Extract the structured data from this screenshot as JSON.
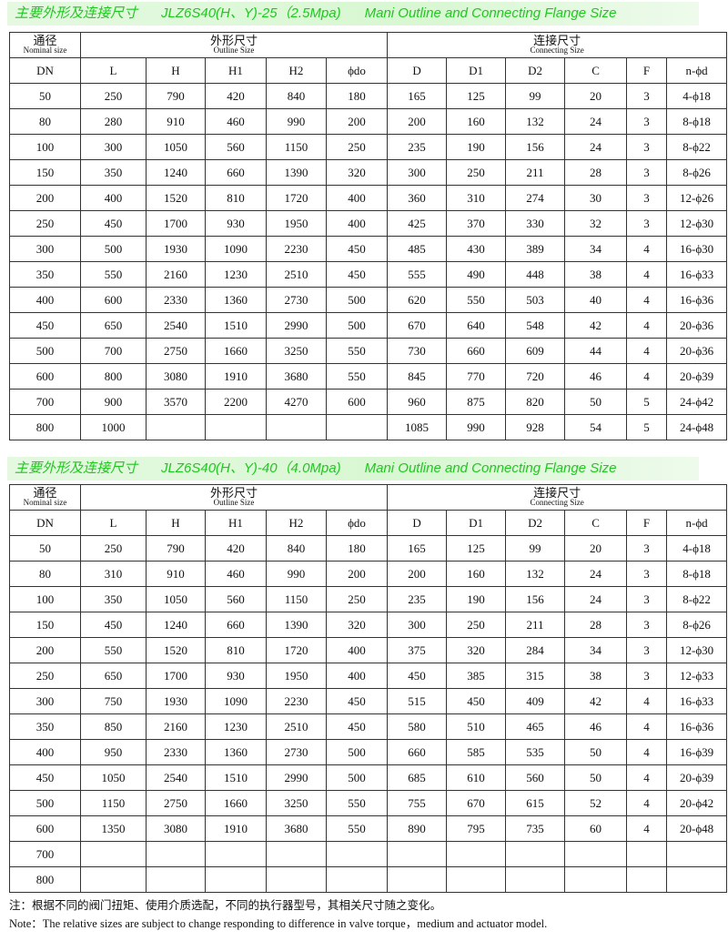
{
  "tables": [
    {
      "title": {
        "cn": "主要外形及连接尺寸",
        "model": "JLZ6S40(H、Y)-25（2.5Mpa)",
        "en": "Mani Outline and Connecting Flange Size"
      },
      "groups": {
        "nominal_cn": "通径",
        "nominal_en": "Nominal size",
        "outline_cn": "外形尺寸",
        "outline_en": "Outline Size",
        "connect_cn": "连接尺寸",
        "connect_en": "Connecting Size"
      },
      "columns": [
        "DN",
        "L",
        "H",
        "H1",
        "H2",
        "ϕdo",
        "D",
        "D1",
        "D2",
        "C",
        "F",
        "n-ϕd"
      ],
      "rows": [
        [
          "50",
          "250",
          "790",
          "420",
          "840",
          "180",
          "165",
          "125",
          "99",
          "20",
          "3",
          "4-ϕ18"
        ],
        [
          "80",
          "280",
          "910",
          "460",
          "990",
          "200",
          "200",
          "160",
          "132",
          "24",
          "3",
          "8-ϕ18"
        ],
        [
          "100",
          "300",
          "1050",
          "560",
          "1150",
          "250",
          "235",
          "190",
          "156",
          "24",
          "3",
          "8-ϕ22"
        ],
        [
          "150",
          "350",
          "1240",
          "660",
          "1390",
          "320",
          "300",
          "250",
          "211",
          "28",
          "3",
          "8-ϕ26"
        ],
        [
          "200",
          "400",
          "1520",
          "810",
          "1720",
          "400",
          "360",
          "310",
          "274",
          "30",
          "3",
          "12-ϕ26"
        ],
        [
          "250",
          "450",
          "1700",
          "930",
          "1950",
          "400",
          "425",
          "370",
          "330",
          "32",
          "3",
          "12-ϕ30"
        ],
        [
          "300",
          "500",
          "1930",
          "1090",
          "2230",
          "450",
          "485",
          "430",
          "389",
          "34",
          "4",
          "16-ϕ30"
        ],
        [
          "350",
          "550",
          "2160",
          "1230",
          "2510",
          "450",
          "555",
          "490",
          "448",
          "38",
          "4",
          "16-ϕ33"
        ],
        [
          "400",
          "600",
          "2330",
          "1360",
          "2730",
          "500",
          "620",
          "550",
          "503",
          "40",
          "4",
          "16-ϕ36"
        ],
        [
          "450",
          "650",
          "2540",
          "1510",
          "2990",
          "500",
          "670",
          "640",
          "548",
          "42",
          "4",
          "20-ϕ36"
        ],
        [
          "500",
          "700",
          "2750",
          "1660",
          "3250",
          "550",
          "730",
          "660",
          "609",
          "44",
          "4",
          "20-ϕ36"
        ],
        [
          "600",
          "800",
          "3080",
          "1910",
          "3680",
          "550",
          "845",
          "770",
          "720",
          "46",
          "4",
          "20-ϕ39"
        ],
        [
          "700",
          "900",
          "3570",
          "2200",
          "4270",
          "600",
          "960",
          "875",
          "820",
          "50",
          "5",
          "24-ϕ42"
        ],
        [
          "800",
          "1000",
          "",
          "",
          "",
          "",
          "1085",
          "990",
          "928",
          "54",
          "5",
          "24-ϕ48"
        ]
      ]
    },
    {
      "title": {
        "cn": "主要外形及连接尺寸",
        "model": "JLZ6S40(H、Y)-40（4.0Mpa)",
        "en": "Mani Outline and Connecting Flange Size"
      },
      "groups": {
        "nominal_cn": "通径",
        "nominal_en": "Nominal size",
        "outline_cn": "外形尺寸",
        "outline_en": "Outline Size",
        "connect_cn": "连接尺寸",
        "connect_en": "Connecting Size"
      },
      "columns": [
        "DN",
        "L",
        "H",
        "H1",
        "H2",
        "ϕdo",
        "D",
        "D1",
        "D2",
        "C",
        "F",
        "n-ϕd"
      ],
      "rows": [
        [
          "50",
          "250",
          "790",
          "420",
          "840",
          "180",
          "165",
          "125",
          "99",
          "20",
          "3",
          "4-ϕ18"
        ],
        [
          "80",
          "310",
          "910",
          "460",
          "990",
          "200",
          "200",
          "160",
          "132",
          "24",
          "3",
          "8-ϕ18"
        ],
        [
          "100",
          "350",
          "1050",
          "560",
          "1150",
          "250",
          "235",
          "190",
          "156",
          "24",
          "3",
          "8-ϕ22"
        ],
        [
          "150",
          "450",
          "1240",
          "660",
          "1390",
          "320",
          "300",
          "250",
          "211",
          "28",
          "3",
          "8-ϕ26"
        ],
        [
          "200",
          "550",
          "1520",
          "810",
          "1720",
          "400",
          "375",
          "320",
          "284",
          "34",
          "3",
          "12-ϕ30"
        ],
        [
          "250",
          "650",
          "1700",
          "930",
          "1950",
          "400",
          "450",
          "385",
          "315",
          "38",
          "3",
          "12-ϕ33"
        ],
        [
          "300",
          "750",
          "1930",
          "1090",
          "2230",
          "450",
          "515",
          "450",
          "409",
          "42",
          "4",
          "16-ϕ33"
        ],
        [
          "350",
          "850",
          "2160",
          "1230",
          "2510",
          "450",
          "580",
          "510",
          "465",
          "46",
          "4",
          "16-ϕ36"
        ],
        [
          "400",
          "950",
          "2330",
          "1360",
          "2730",
          "500",
          "660",
          "585",
          "535",
          "50",
          "4",
          "16-ϕ39"
        ],
        [
          "450",
          "1050",
          "2540",
          "1510",
          "2990",
          "500",
          "685",
          "610",
          "560",
          "50",
          "4",
          "20-ϕ39"
        ],
        [
          "500",
          "1150",
          "2750",
          "1660",
          "3250",
          "550",
          "755",
          "670",
          "615",
          "52",
          "4",
          "20-ϕ42"
        ],
        [
          "600",
          "1350",
          "3080",
          "1910",
          "3680",
          "550",
          "890",
          "795",
          "735",
          "60",
          "4",
          "20-ϕ48"
        ],
        [
          "700",
          "",
          "",
          "",
          "",
          "",
          "",
          "",
          "",
          "",
          "",
          ""
        ],
        [
          "800",
          "",
          "",
          "",
          "",
          "",
          "",
          "",
          "",
          "",
          "",
          ""
        ]
      ]
    }
  ],
  "notes": {
    "cn": "注：根据不同的阀门扭矩、使用介质选配，不同的执行器型号，其相关尺寸随之变化。",
    "en": "Note：The relative sizes are subject to change responding to difference in valve torque，medium and actuator model."
  }
}
